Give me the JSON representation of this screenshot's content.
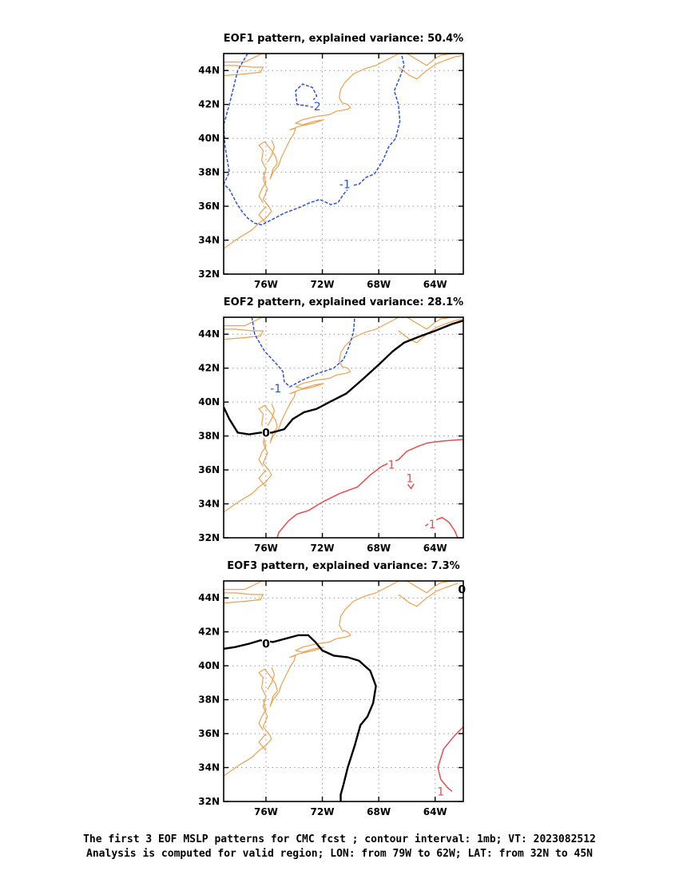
{
  "chart_data": [
    {
      "type": "contour-map",
      "title": "EOF1 pattern, explained variance: 50.4%",
      "xlim": [
        -79,
        -62
      ],
      "ylim": [
        32,
        45
      ],
      "x_ticks": [
        "76W",
        "72W",
        "68W",
        "64W"
      ],
      "y_ticks": [
        "32N",
        "34N",
        "36N",
        "38N",
        "40N",
        "42N",
        "44N"
      ],
      "contours": [
        {
          "level": -1,
          "label": "-1",
          "style": "dashed",
          "color": "#2c4fe6",
          "label_at": [
            -70.4,
            37.3
          ],
          "points": [
            [
              -77.3,
              45
            ],
            [
              -78.0,
              44.0
            ],
            [
              -78.6,
              42.0
            ],
            [
              -79,
              40.8
            ],
            [
              -78.9,
              39.5
            ],
            [
              -78.6,
              38.0
            ],
            [
              -79,
              37.3
            ],
            [
              -78.6,
              37.0
            ],
            [
              -78.1,
              36.2
            ],
            [
              -77.7,
              35.7
            ],
            [
              -77.3,
              35.3
            ],
            [
              -76.8,
              35.0
            ],
            [
              -76.3,
              34.9
            ],
            [
              -75.6,
              35.2
            ],
            [
              -74.7,
              35.6
            ],
            [
              -73.7,
              35.9
            ],
            [
              -72.9,
              36.2
            ],
            [
              -72.2,
              36.4
            ],
            [
              -71.4,
              36.1
            ],
            [
              -70.9,
              36.2
            ],
            [
              -70.5,
              36.7
            ],
            [
              -70.0,
              37.2
            ],
            [
              -69.4,
              37.3
            ],
            [
              -68.9,
              37.7
            ],
            [
              -68.3,
              37.9
            ],
            [
              -67.7,
              38.7
            ],
            [
              -67.3,
              39.5
            ],
            [
              -66.8,
              40.0
            ],
            [
              -66.5,
              41.0
            ],
            [
              -66.6,
              42.0
            ],
            [
              -66.9,
              42.8
            ],
            [
              -66.5,
              43.6
            ],
            [
              -66.2,
              44.3
            ],
            [
              -66.4,
              45
            ]
          ]
        },
        {
          "level": -2,
          "label": "-2",
          "style": "dashed",
          "color": "#2c4fe6",
          "label_at": [
            -72.5,
            41.9
          ],
          "points": [
            [
              -73.0,
              41.9
            ],
            [
              -73.8,
              42.0
            ],
            [
              -73.9,
              42.8
            ],
            [
              -73.4,
              43.2
            ],
            [
              -72.7,
              43.0
            ],
            [
              -72.4,
              42.5
            ],
            [
              -72.9,
              42.0
            ]
          ]
        }
      ]
    },
    {
      "type": "contour-map",
      "title": "EOF2 pattern, explained variance: 28.1%",
      "xlim": [
        -79,
        -62
      ],
      "ylim": [
        32,
        45
      ],
      "x_ticks": [
        "76W",
        "72W",
        "68W",
        "64W"
      ],
      "y_ticks": [
        "32N",
        "34N",
        "36N",
        "38N",
        "40N",
        "42N",
        "44N"
      ],
      "contours": [
        {
          "level": -1,
          "label": "-1",
          "style": "dashed",
          "color": "#2c4fe6",
          "label_at": [
            -75.3,
            40.8
          ],
          "points": [
            [
              -77.0,
              45
            ],
            [
              -76.8,
              44.0
            ],
            [
              -76.1,
              43.0
            ],
            [
              -75.2,
              42.2
            ],
            [
              -74.8,
              41.8
            ],
            [
              -74.7,
              41.2
            ],
            [
              -74.3,
              40.9
            ],
            [
              -73.4,
              41.3
            ],
            [
              -72.3,
              41.7
            ],
            [
              -71.2,
              42.0
            ],
            [
              -70.5,
              42.5
            ],
            [
              -70.1,
              43.3
            ],
            [
              -69.8,
              44.1
            ],
            [
              -69.7,
              45
            ]
          ]
        },
        {
          "level": 0,
          "label": "0",
          "style": "solid",
          "color": "#000000",
          "label_at": [
            -76.0,
            38.2
          ],
          "points": [
            [
              -79,
              39.7
            ],
            [
              -78.6,
              39.0
            ],
            [
              -78.0,
              38.2
            ],
            [
              -77.2,
              38.1
            ],
            [
              -76.4,
              38.2
            ],
            [
              -75.6,
              38.2
            ],
            [
              -74.7,
              38.4
            ],
            [
              -74.1,
              39.0
            ],
            [
              -73.3,
              39.4
            ],
            [
              -72.4,
              39.6
            ],
            [
              -71.5,
              40.0
            ],
            [
              -70.3,
              40.5
            ],
            [
              -69.2,
              41.3
            ],
            [
              -68.0,
              42.2
            ],
            [
              -67.0,
              43.0
            ],
            [
              -66.2,
              43.5
            ],
            [
              -65.0,
              43.9
            ],
            [
              -64.0,
              44.2
            ],
            [
              -62.8,
              44.6
            ],
            [
              -62,
              44.8
            ]
          ]
        },
        {
          "level": 1,
          "label": "1",
          "style": "solid",
          "color": "#e84c4c",
          "label_at": [
            -67.1,
            36.3
          ],
          "points": [
            [
              -75.2,
              32.0
            ],
            [
              -75.1,
              32.3
            ],
            [
              -74.4,
              33.0
            ],
            [
              -73.8,
              33.4
            ],
            [
              -73.0,
              33.6
            ],
            [
              -72.0,
              34.1
            ],
            [
              -70.8,
              34.6
            ],
            [
              -69.5,
              35.0
            ],
            [
              -68.6,
              35.7
            ],
            [
              -67.8,
              36.2
            ],
            [
              -67.3,
              36.4
            ],
            [
              -66.6,
              36.6
            ],
            [
              -66.0,
              37.1
            ],
            [
              -65.2,
              37.4
            ],
            [
              -64.5,
              37.6
            ],
            [
              -63.5,
              37.7
            ],
            [
              -62,
              37.8
            ]
          ]
        },
        {
          "level": 1,
          "label": "1",
          "style": "solid",
          "color": "#e84c4c",
          "label_at": [
            -65.8,
            35.5
          ],
          "points": [
            [
              -66.0,
              35.7
            ],
            [
              -65.9,
              35.1
            ],
            [
              -65.7,
              34.9
            ],
            [
              -65.5,
              35.2
            ]
          ]
        },
        {
          "level": 1,
          "label": "1",
          "style": "solid",
          "color": "#e84c4c",
          "label_at": [
            -64.2,
            32.8
          ],
          "points": [
            [
              -64.7,
              32.7
            ],
            [
              -64.1,
              33.0
            ],
            [
              -63.5,
              33.2
            ],
            [
              -63.0,
              32.9
            ],
            [
              -62.6,
              32.4
            ],
            [
              -62.4,
              32.0
            ]
          ]
        }
      ]
    },
    {
      "type": "contour-map",
      "title": "EOF3 pattern, explained variance: 7.3%",
      "xlim": [
        -79,
        -62
      ],
      "ylim": [
        32,
        45
      ],
      "x_ticks": [
        "76W",
        "72W",
        "68W",
        "64W"
      ],
      "y_ticks": [
        "32N",
        "34N",
        "36N",
        "38N",
        "40N",
        "42N",
        "44N"
      ],
      "contours": [
        {
          "level": 0,
          "label": "0",
          "style": "solid",
          "color": "#000000",
          "label_at": [
            -76.0,
            41.3
          ],
          "points": [
            [
              -79,
              41.0
            ],
            [
              -78.2,
              41.1
            ],
            [
              -77.2,
              41.3
            ],
            [
              -76.4,
              41.5
            ],
            [
              -75.5,
              41.4
            ],
            [
              -74.6,
              41.6
            ],
            [
              -73.7,
              41.8
            ],
            [
              -73.0,
              41.8
            ],
            [
              -72.5,
              41.4
            ],
            [
              -72.0,
              40.9
            ],
            [
              -71.2,
              40.6
            ],
            [
              -70.2,
              40.5
            ],
            [
              -69.4,
              40.3
            ],
            [
              -68.6,
              39.7
            ],
            [
              -68.2,
              38.8
            ],
            [
              -68.4,
              37.8
            ],
            [
              -68.8,
              37.0
            ],
            [
              -69.3,
              36.5
            ],
            [
              -69.7,
              35.3
            ],
            [
              -70.2,
              34.0
            ],
            [
              -70.5,
              33.0
            ],
            [
              -70.7,
              32.4
            ],
            [
              -70.7,
              32.0
            ]
          ]
        },
        {
          "level": 0,
          "label": "0",
          "style": "solid",
          "color": "#000000",
          "label_at": [
            -62.1,
            44.5
          ],
          "points": []
        },
        {
          "level": 1,
          "label": "1",
          "style": "solid",
          "color": "#e84c4c",
          "label_at": [
            -63.6,
            32.6
          ],
          "points": [
            [
              -62,
              36.4
            ],
            [
              -62.6,
              35.9
            ],
            [
              -63.4,
              35.1
            ],
            [
              -63.8,
              34.0
            ],
            [
              -63.6,
              33.3
            ],
            [
              -63.1,
              32.8
            ],
            [
              -62.8,
              32.6
            ]
          ]
        }
      ]
    }
  ],
  "caption": {
    "line1": "The first 3 EOF MSLP patterns for CMC fcst ; contour interval: 1mb; VT: 2023082512",
    "line2": "Analysis is computed for valid region; LON: from 79W to 62W; LAT: from 32N to 45N"
  }
}
